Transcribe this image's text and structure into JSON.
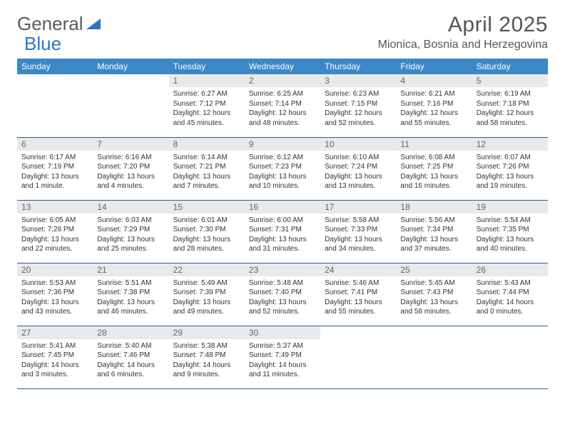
{
  "brand": {
    "part1": "General",
    "part2": "Blue"
  },
  "title": {
    "month": "April 2025",
    "location": "Mionica, Bosnia and Herzegovina"
  },
  "colors": {
    "header_bg": "#3c88c6",
    "header_text": "#ffffff",
    "daynum_bg": "#e9e9e9",
    "text": "#333333",
    "brand_gray": "#5a5a5a",
    "brand_blue": "#2a77bd",
    "row_border": "#2b5f8c"
  },
  "typography": {
    "body_font": "Arial",
    "month_fontsize": 30,
    "location_fontsize": 16,
    "cell_fontsize": 10
  },
  "weekdays": [
    "Sunday",
    "Monday",
    "Tuesday",
    "Wednesday",
    "Thursday",
    "Friday",
    "Saturday"
  ],
  "weeks": [
    [
      null,
      null,
      {
        "n": "1",
        "sr": "6:27 AM",
        "ss": "7:12 PM",
        "dl": "12 hours and 45 minutes."
      },
      {
        "n": "2",
        "sr": "6:25 AM",
        "ss": "7:14 PM",
        "dl": "12 hours and 48 minutes."
      },
      {
        "n": "3",
        "sr": "6:23 AM",
        "ss": "7:15 PM",
        "dl": "12 hours and 52 minutes."
      },
      {
        "n": "4",
        "sr": "6:21 AM",
        "ss": "7:16 PM",
        "dl": "12 hours and 55 minutes."
      },
      {
        "n": "5",
        "sr": "6:19 AM",
        "ss": "7:18 PM",
        "dl": "12 hours and 58 minutes."
      }
    ],
    [
      {
        "n": "6",
        "sr": "6:17 AM",
        "ss": "7:19 PM",
        "dl": "13 hours and 1 minute."
      },
      {
        "n": "7",
        "sr": "6:16 AM",
        "ss": "7:20 PM",
        "dl": "13 hours and 4 minutes."
      },
      {
        "n": "8",
        "sr": "6:14 AM",
        "ss": "7:21 PM",
        "dl": "13 hours and 7 minutes."
      },
      {
        "n": "9",
        "sr": "6:12 AM",
        "ss": "7:23 PM",
        "dl": "13 hours and 10 minutes."
      },
      {
        "n": "10",
        "sr": "6:10 AM",
        "ss": "7:24 PM",
        "dl": "13 hours and 13 minutes."
      },
      {
        "n": "11",
        "sr": "6:08 AM",
        "ss": "7:25 PM",
        "dl": "13 hours and 16 minutes."
      },
      {
        "n": "12",
        "sr": "6:07 AM",
        "ss": "7:26 PM",
        "dl": "13 hours and 19 minutes."
      }
    ],
    [
      {
        "n": "13",
        "sr": "6:05 AM",
        "ss": "7:28 PM",
        "dl": "13 hours and 22 minutes."
      },
      {
        "n": "14",
        "sr": "6:03 AM",
        "ss": "7:29 PM",
        "dl": "13 hours and 25 minutes."
      },
      {
        "n": "15",
        "sr": "6:01 AM",
        "ss": "7:30 PM",
        "dl": "13 hours and 28 minutes."
      },
      {
        "n": "16",
        "sr": "6:00 AM",
        "ss": "7:31 PM",
        "dl": "13 hours and 31 minutes."
      },
      {
        "n": "17",
        "sr": "5:58 AM",
        "ss": "7:33 PM",
        "dl": "13 hours and 34 minutes."
      },
      {
        "n": "18",
        "sr": "5:56 AM",
        "ss": "7:34 PM",
        "dl": "13 hours and 37 minutes."
      },
      {
        "n": "19",
        "sr": "5:54 AM",
        "ss": "7:35 PM",
        "dl": "13 hours and 40 minutes."
      }
    ],
    [
      {
        "n": "20",
        "sr": "5:53 AM",
        "ss": "7:36 PM",
        "dl": "13 hours and 43 minutes."
      },
      {
        "n": "21",
        "sr": "5:51 AM",
        "ss": "7:38 PM",
        "dl": "13 hours and 46 minutes."
      },
      {
        "n": "22",
        "sr": "5:49 AM",
        "ss": "7:39 PM",
        "dl": "13 hours and 49 minutes."
      },
      {
        "n": "23",
        "sr": "5:48 AM",
        "ss": "7:40 PM",
        "dl": "13 hours and 52 minutes."
      },
      {
        "n": "24",
        "sr": "5:46 AM",
        "ss": "7:41 PM",
        "dl": "13 hours and 55 minutes."
      },
      {
        "n": "25",
        "sr": "5:45 AM",
        "ss": "7:43 PM",
        "dl": "13 hours and 58 minutes."
      },
      {
        "n": "26",
        "sr": "5:43 AM",
        "ss": "7:44 PM",
        "dl": "14 hours and 0 minutes."
      }
    ],
    [
      {
        "n": "27",
        "sr": "5:41 AM",
        "ss": "7:45 PM",
        "dl": "14 hours and 3 minutes."
      },
      {
        "n": "28",
        "sr": "5:40 AM",
        "ss": "7:46 PM",
        "dl": "14 hours and 6 minutes."
      },
      {
        "n": "29",
        "sr": "5:38 AM",
        "ss": "7:48 PM",
        "dl": "14 hours and 9 minutes."
      },
      {
        "n": "30",
        "sr": "5:37 AM",
        "ss": "7:49 PM",
        "dl": "14 hours and 11 minutes."
      },
      null,
      null,
      null
    ]
  ],
  "labels": {
    "sunrise": "Sunrise:",
    "sunset": "Sunset:",
    "daylight": "Daylight:"
  }
}
